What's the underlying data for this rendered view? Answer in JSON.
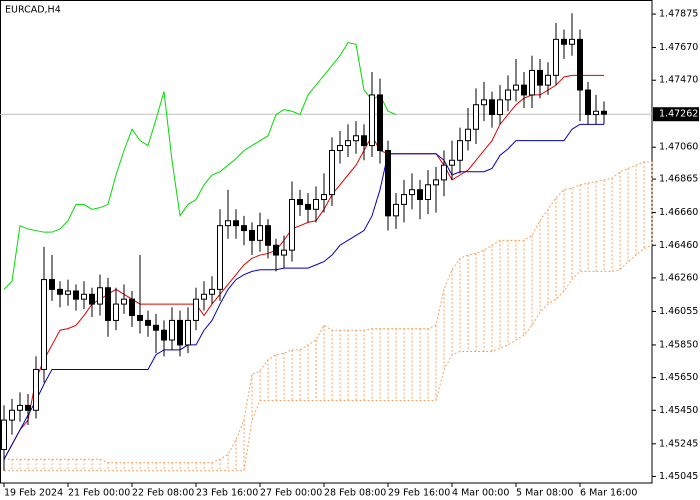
{
  "chart_data": {
    "type": "candlestick",
    "title": "EURCAD,H4",
    "categories": [
      "19 Feb 2024",
      null,
      null,
      null,
      null,
      null,
      null,
      null,
      "21 Feb 00:00",
      null,
      null,
      null,
      null,
      null,
      null,
      null,
      "22 Feb 08:00",
      null,
      null,
      null,
      null,
      null,
      null,
      null,
      "23 Feb 16:00",
      null,
      null,
      null,
      null,
      null,
      null,
      null,
      "27 Feb 00:00",
      null,
      null,
      null,
      null,
      null,
      null,
      null,
      "28 Feb 08:00",
      null,
      null,
      null,
      null,
      null,
      null,
      null,
      "29 Feb 16:00",
      null,
      null,
      null,
      null,
      null,
      null,
      null,
      "4 Mar 00:00",
      null,
      null,
      null,
      null,
      null,
      null,
      null,
      "5 Mar 08:00",
      null,
      null,
      null,
      null,
      null,
      null,
      null,
      "6 Mar 16:00",
      null,
      null,
      null,
      null,
      null,
      null,
      null,
      null,
      null
    ],
    "open": [
      1.4521,
      1.4539,
      1.4545,
      1.4548,
      1.4545,
      1.457,
      1.4625,
      1.4619,
      1.4616,
      1.4618,
      1.4613,
      1.4616,
      1.461,
      1.462,
      1.46,
      1.461,
      1.4613,
      1.4603,
      1.46,
      1.4597,
      1.4594,
      1.4588,
      1.46,
      1.4585,
      1.46,
      1.4613,
      1.4616,
      1.4619,
      1.4658,
      1.4661,
      1.4658,
      1.4655,
      1.4649,
      1.4658,
      1.4646,
      1.464,
      1.4643,
      1.4674,
      1.4671,
      1.4668,
      1.4674,
      1.4677,
      1.4704,
      1.4707,
      1.471,
      1.4713,
      1.4707,
      1.4738,
      1.4704,
      1.4664,
      1.4671,
      1.4677,
      1.468,
      1.4674,
      1.4683,
      1.4686,
      1.4695,
      1.4698,
      1.471,
      1.4717,
      1.4732,
      1.4735,
      1.4726,
      1.4735,
      1.4741,
      1.4744,
      1.4738,
      1.4753,
      1.4744,
      1.475,
      1.4772,
      1.4769,
      1.4772,
      1.4741,
      1.4726,
      1.4728,
      null,
      null,
      null,
      null,
      null,
      null
    ],
    "high": [
      1.4548,
      1.4552,
      1.4556,
      1.4555,
      1.4578,
      1.4645,
      1.464,
      1.4624,
      1.4625,
      1.4622,
      1.4624,
      1.462,
      1.4628,
      1.4626,
      1.462,
      1.4622,
      1.4618,
      1.464,
      1.4606,
      1.4604,
      1.46,
      1.4608,
      1.4606,
      1.4608,
      1.462,
      1.4624,
      1.4627,
      1.4668,
      1.468,
      1.4668,
      1.4664,
      1.466,
      1.4666,
      1.4662,
      1.465,
      1.4652,
      1.4685,
      1.468,
      1.4678,
      1.4682,
      1.469,
      1.4712,
      1.4716,
      1.472,
      1.4722,
      1.472,
      1.4752,
      1.4748,
      1.471,
      1.4678,
      1.4686,
      1.469,
      1.4686,
      1.4692,
      1.4694,
      1.4704,
      1.471,
      1.4718,
      1.473,
      1.4742,
      1.4746,
      1.474,
      1.4744,
      1.475,
      1.476,
      1.4752,
      1.4762,
      1.476,
      1.4758,
      1.4782,
      1.4778,
      1.4788,
      1.4778,
      1.4746,
      1.4738,
      1.4734,
      null,
      null,
      null,
      null,
      null,
      null
    ],
    "low": [
      1.4508,
      1.453,
      1.4538,
      1.4536,
      1.454,
      1.4562,
      1.4612,
      1.4608,
      1.4609,
      1.4606,
      1.4607,
      1.4602,
      1.4603,
      1.459,
      1.4594,
      1.4604,
      1.4596,
      1.4592,
      1.459,
      1.458,
      1.4578,
      1.4582,
      1.4578,
      1.458,
      1.4594,
      1.4606,
      1.461,
      1.4612,
      1.465,
      1.465,
      1.4646,
      1.464,
      1.4642,
      1.4638,
      1.463,
      1.4632,
      1.4636,
      1.4664,
      1.466,
      1.466,
      1.4666,
      1.467,
      1.4696,
      1.47,
      1.4702,
      1.4698,
      1.47,
      1.4696,
      1.4655,
      1.4656,
      1.466,
      1.4668,
      1.4662,
      1.4665,
      1.4666,
      1.4676,
      1.4686,
      1.469,
      1.4704,
      1.4708,
      1.4722,
      1.4718,
      1.472,
      1.4728,
      1.4734,
      1.473,
      1.473,
      1.4736,
      1.4738,
      1.4744,
      1.476,
      1.4762,
      1.4722,
      1.472,
      1.472,
      1.472,
      null,
      null,
      null,
      null,
      null,
      null
    ],
    "close": [
      1.4539,
      1.4545,
      1.4548,
      1.4545,
      1.457,
      1.4625,
      1.4619,
      1.4616,
      1.4618,
      1.4613,
      1.4616,
      1.461,
      1.462,
      1.46,
      1.461,
      1.4613,
      1.4603,
      1.46,
      1.4597,
      1.4594,
      1.4588,
      1.46,
      1.4585,
      1.46,
      1.4613,
      1.4616,
      1.4619,
      1.4658,
      1.4661,
      1.4658,
      1.4655,
      1.4649,
      1.4658,
      1.4646,
      1.464,
      1.4643,
      1.4674,
      1.4671,
      1.4668,
      1.4674,
      1.4677,
      1.4704,
      1.4707,
      1.471,
      1.4713,
      1.4707,
      1.4738,
      1.4704,
      1.4664,
      1.4671,
      1.4677,
      1.468,
      1.4674,
      1.4683,
      1.4686,
      1.4695,
      1.4698,
      1.471,
      1.4717,
      1.4732,
      1.4735,
      1.4726,
      1.4735,
      1.4741,
      1.4744,
      1.4738,
      1.4753,
      1.4744,
      1.475,
      1.4772,
      1.4769,
      1.4772,
      1.4741,
      1.4726,
      1.4728,
      1.47262,
      null,
      null,
      null,
      null,
      null,
      null
    ],
    "up_color": "#ffffff",
    "down_color": "#000000",
    "candle_edge": "#000000",
    "lines": [
      {
        "color": "#e00000",
        "values": [
          1.4515,
          1.4524,
          1.4533,
          1.4539,
          1.4564,
          1.4576,
          1.4585,
          1.4594,
          1.4595,
          1.4597,
          1.4603,
          1.461,
          1.4613,
          1.4616,
          1.4619,
          1.4616,
          1.4613,
          1.461,
          1.461,
          1.461,
          1.461,
          1.461,
          1.461,
          1.461,
          1.461,
          1.4603,
          1.461,
          1.4616,
          1.4622,
          1.4628,
          1.4634,
          1.4638,
          1.464,
          1.4641,
          1.4643,
          1.4649,
          1.4656,
          1.4658,
          1.466,
          1.4661,
          1.4668,
          1.4677,
          1.4683,
          1.4689,
          1.4695,
          1.4704,
          1.4713,
          1.4704,
          1.4702,
          1.4702,
          1.4702,
          1.4702,
          1.4702,
          1.4702,
          1.4702,
          1.4695,
          1.4686,
          1.4689,
          1.4692,
          1.4698,
          1.4704,
          1.471,
          1.472,
          1.4726,
          1.4732,
          1.4736,
          1.4738,
          1.4738,
          1.4741,
          1.4744,
          1.4749,
          1.475,
          1.475,
          1.475,
          1.475,
          1.475,
          null,
          null,
          null,
          null,
          null,
          null
        ]
      },
      {
        "color": "#0000c0",
        "values": [
          1.4515,
          1.4524,
          1.4533,
          1.4542,
          1.4551,
          1.4561,
          1.457,
          1.457,
          1.457,
          1.457,
          1.457,
          1.457,
          1.457,
          1.457,
          1.457,
          1.457,
          1.457,
          1.457,
          1.457,
          1.4579,
          1.4582,
          1.4582,
          1.4582,
          1.4585,
          1.4585,
          1.4594,
          1.46,
          1.461,
          1.4619,
          1.4625,
          1.4628,
          1.463,
          1.4631,
          1.4631,
          1.4631,
          1.4632,
          1.4632,
          1.4632,
          1.4632,
          1.4634,
          1.4636,
          1.464,
          1.4646,
          1.4649,
          1.4652,
          1.4655,
          1.4664,
          1.468,
          1.4702,
          1.4702,
          1.4702,
          1.4702,
          1.4702,
          1.4702,
          1.4702,
          1.4698,
          1.4689,
          1.4691,
          1.4691,
          1.4691,
          1.4691,
          1.4693,
          1.4701,
          1.4705,
          1.471,
          1.471,
          1.471,
          1.471,
          1.471,
          1.471,
          1.471,
          1.4717,
          1.472,
          1.472,
          1.472,
          1.472,
          null,
          null,
          null,
          null,
          null,
          null
        ]
      },
      {
        "color": "#00dd00",
        "values": [
          1.4619,
          1.4624,
          1.4658,
          1.4656,
          1.4655,
          1.4654,
          1.4654,
          1.4656,
          1.4661,
          1.4671,
          1.4671,
          1.4668,
          1.4669,
          1.4671,
          1.4689,
          1.4704,
          1.4717,
          1.471,
          1.4707,
          1.4723,
          1.474,
          1.4698,
          1.4664,
          1.4671,
          1.4674,
          1.4683,
          1.4689,
          1.4691,
          1.4695,
          1.4699,
          1.4704,
          1.4707,
          1.471,
          1.4713,
          1.4726,
          1.4729,
          1.4728,
          1.4726,
          1.4738,
          1.4744,
          1.475,
          1.4756,
          1.4762,
          1.477,
          1.4769,
          1.4741,
          1.4735,
          1.4738,
          1.4728,
          1.4726,
          null,
          null,
          null,
          null,
          null,
          null,
          null,
          null,
          null,
          null,
          null,
          null,
          null,
          null,
          null,
          null,
          null,
          null,
          null,
          null,
          null,
          null,
          null,
          null,
          null,
          null,
          null,
          null,
          null,
          null,
          null,
          null
        ]
      }
    ],
    "cloud": {
      "color": "#f4a460",
      "upper": [
        1.4515,
        1.4515,
        1.4515,
        1.4515,
        1.4515,
        1.4515,
        1.4515,
        1.4515,
        1.4515,
        1.4515,
        1.4515,
        1.4515,
        1.4515,
        1.4513,
        1.4513,
        1.4513,
        1.4513,
        1.4513,
        1.4513,
        1.4513,
        1.4513,
        1.4513,
        1.4513,
        1.4513,
        1.4513,
        1.4513,
        1.4513,
        1.4515,
        1.4518,
        1.4527,
        1.4539,
        1.4567,
        1.4569,
        1.4576,
        1.4579,
        1.458,
        1.4582,
        1.4582,
        1.4585,
        1.4588,
        1.4597,
        1.4594,
        1.4594,
        1.4594,
        1.4594,
        1.4594,
        1.4595,
        1.4595,
        1.4595,
        1.4595,
        1.4595,
        1.4595,
        1.4595,
        1.4595,
        1.4597,
        1.4619,
        1.4631,
        1.4638,
        1.464,
        1.4641,
        1.4643,
        1.4646,
        1.4649,
        1.4649,
        1.4649,
        1.4649,
        1.4652,
        1.4661,
        1.4668,
        1.4675,
        1.468,
        1.4681,
        1.4683,
        1.4684,
        1.4685,
        1.4686,
        1.4687,
        1.4691,
        1.4693,
        1.4695,
        1.4697,
        1.4697
      ],
      "lower": [
        1.4508,
        1.4508,
        1.4508,
        1.4508,
        1.4508,
        1.4508,
        1.4508,
        1.4508,
        1.4508,
        1.4508,
        1.4508,
        1.4508,
        1.4508,
        1.4508,
        1.4508,
        1.4508,
        1.4508,
        1.4508,
        1.4508,
        1.4508,
        1.4508,
        1.4508,
        1.4508,
        1.4508,
        1.4508,
        1.4508,
        1.4508,
        1.4508,
        1.4508,
        1.4508,
        1.4508,
        1.4539,
        1.4551,
        1.4551,
        1.4551,
        1.4551,
        1.4551,
        1.4551,
        1.4551,
        1.4551,
        1.4551,
        1.4551,
        1.4551,
        1.4551,
        1.4551,
        1.4551,
        1.4551,
        1.4551,
        1.4551,
        1.4551,
        1.4551,
        1.4551,
        1.4551,
        1.4551,
        1.4551,
        1.457,
        1.4579,
        1.4581,
        1.4581,
        1.4581,
        1.4581,
        1.4581,
        1.4583,
        1.4585,
        1.4588,
        1.4591,
        1.4597,
        1.4605,
        1.461,
        1.4613,
        1.4618,
        1.4625,
        1.463,
        1.463,
        1.463,
        1.463,
        1.463,
        1.4631,
        1.4636,
        1.464,
        1.4644,
        1.4646
      ]
    },
    "current_price": 1.47262,
    "current_price_color": "#c0c0c0",
    "ylim": [
      1.45005,
      1.47961
    ],
    "yticks": [
      1.47875,
      {
        "value": 1.4767,
        "label": "1.47670"
      },
      {
        "value": 1.4747,
        "label": "1.47470"
      },
      {
        "value": 1.4706,
        "label": "1.47060"
      },
      1.46865,
      {
        "value": 1.4666,
        "label": "1.46660"
      },
      {
        "value": 1.4646,
        "label": "1.46460"
      },
      {
        "value": 1.4626,
        "label": "1.46260"
      },
      1.46055,
      {
        "value": 1.4585,
        "label": "1.45850"
      },
      {
        "value": 1.4565,
        "label": "1.45650"
      },
      {
        "value": 1.4545,
        "label": "1.45450"
      },
      1.45245,
      1.45045
    ],
    "grid": false
  }
}
